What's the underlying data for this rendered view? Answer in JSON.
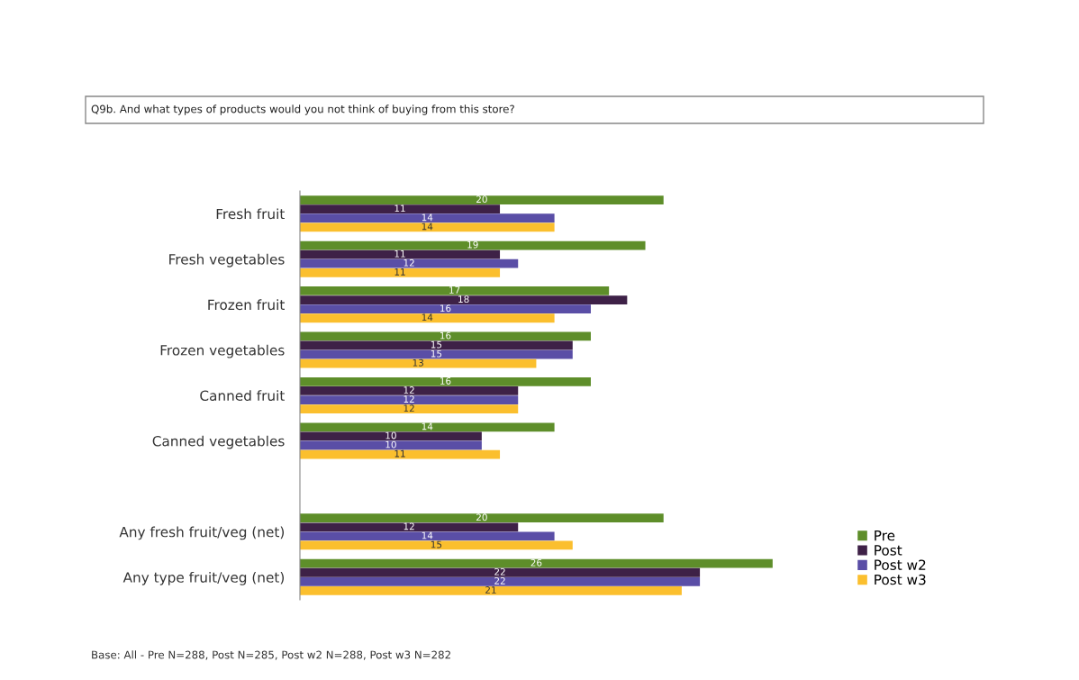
{
  "chart_data": {
    "type": "bar",
    "orientation": "horizontal",
    "title": "Q9b. And what types of products would you not think of buying from this store?",
    "categories": [
      "Fresh fruit",
      "Fresh vegetables",
      "Frozen fruit",
      "Frozen vegetables",
      "Canned fruit",
      "Canned vegetables",
      null,
      "Any fresh fruit/veg (net)",
      "Any type fruit/veg (net)"
    ],
    "series": [
      {
        "name": "Pre",
        "color": "#5e8e2a",
        "values": [
          20,
          19,
          17,
          16,
          16,
          14,
          null,
          20,
          26
        ]
      },
      {
        "name": "Post",
        "color": "#3e2147",
        "values": [
          11,
          11,
          18,
          15,
          12,
          10,
          null,
          12,
          22
        ]
      },
      {
        "name": "Post w2",
        "color": "#5a4ea6",
        "values": [
          14,
          12,
          16,
          15,
          12,
          10,
          null,
          14,
          22
        ]
      },
      {
        "name": "Post w3",
        "color": "#fbbf2e",
        "values": [
          14,
          11,
          14,
          13,
          12,
          11,
          null,
          15,
          21
        ]
      }
    ],
    "data_labels": true,
    "legend": "bottom right",
    "grid": false,
    "tick_labels": "y",
    "annotations": [
      "Base: All - Pre N=288, Post N=285, Post w2 N=288, Post w3 N=282"
    ]
  }
}
